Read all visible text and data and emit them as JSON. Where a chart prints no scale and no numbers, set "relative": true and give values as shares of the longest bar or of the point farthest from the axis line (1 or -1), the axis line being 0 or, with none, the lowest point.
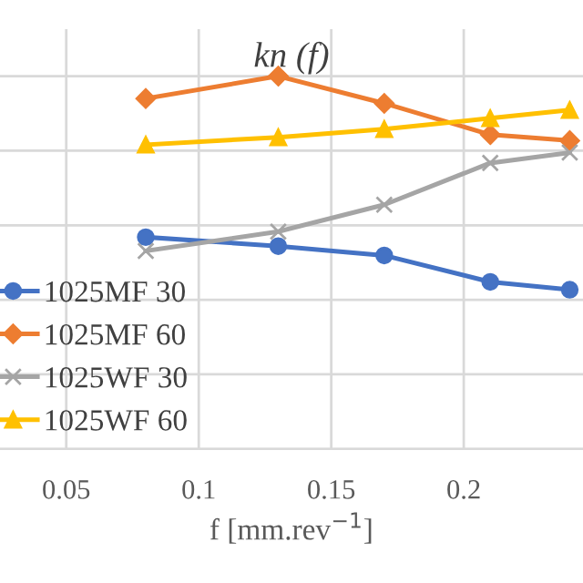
{
  "chart_data": {
    "type": "line",
    "title": "kn (f)",
    "xlabel": "f [mm.rev$^{−1}$]",
    "relative": true,
    "xlim": [
      0.025,
      0.245
    ],
    "xticks": [
      0.05,
      0.1,
      0.15,
      0.2
    ],
    "x": [
      0.08,
      0.13,
      0.17,
      0.21,
      0.24
    ],
    "grid": true,
    "legend": "left",
    "series": [
      {
        "name": "1025MF 30",
        "color": "#4472c4",
        "marker": "circle",
        "values": [
          0.568,
          0.544,
          0.519,
          0.448,
          0.427
        ]
      },
      {
        "name": "1025MF 60",
        "color": "#ed7d31",
        "marker": "diamond",
        "values": [
          0.94,
          1.0,
          0.927,
          0.843,
          0.827
        ]
      },
      {
        "name": "1025WF 30",
        "color": "#a5a5a5",
        "marker": "cross",
        "values": [
          0.531,
          0.583,
          0.655,
          0.767,
          0.795
        ]
      },
      {
        "name": "1025WF 60",
        "color": "#ffc000",
        "marker": "triangle",
        "values": [
          0.816,
          0.836,
          0.858,
          0.887,
          0.909
        ]
      }
    ]
  }
}
